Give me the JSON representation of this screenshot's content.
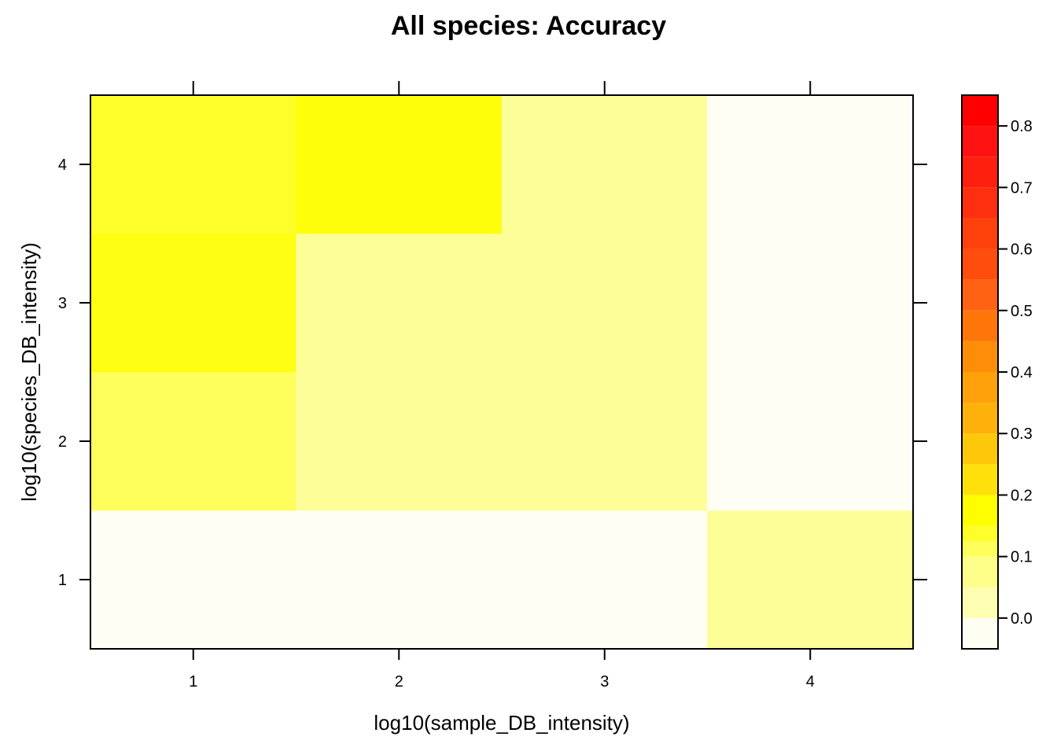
{
  "chart_data": {
    "type": "heatmap",
    "title": "All species: Accuracy",
    "xlabel": "log10(sample_DB_intensity)",
    "ylabel": "log10(species_DB_intensity)",
    "x": [
      1,
      2,
      3,
      4
    ],
    "y": [
      1,
      2,
      3,
      4
    ],
    "xlim": [
      0.5,
      4.5
    ],
    "ylim": [
      0.5,
      4.5
    ],
    "values": [
      [
        0.0,
        0.0,
        0.0,
        0.05
      ],
      [
        0.15,
        0.05,
        0.05,
        0.0
      ],
      [
        0.2,
        0.05,
        0.05,
        0.0
      ],
      [
        0.175,
        0.2,
        0.05,
        0.0
      ]
    ],
    "colorbar": {
      "range": [
        -0.05,
        0.85
      ],
      "breaks": [
        -0.05,
        0.0,
        0.05,
        0.1,
        0.125,
        0.15,
        0.2,
        0.25,
        0.3,
        0.35,
        0.4,
        0.45,
        0.5,
        0.55,
        0.6,
        0.65,
        0.7,
        0.75,
        0.8,
        0.85
      ],
      "colors": [
        "#fefef3",
        "#fefeb3",
        "#fefe8a",
        "#fefe5a",
        "#fefe2a",
        "#fefe00",
        "#fee10b",
        "#fec80a",
        "#feb10a",
        "#fea10a",
        "#fe8e0a",
        "#fe760a",
        "#fe6212",
        "#fe4d0d",
        "#fe400c",
        "#fe2f0e",
        "#fe1f0e",
        "#fe1212",
        "#fe0000"
      ],
      "ticks": [
        "0.0",
        "0.1",
        "0.2",
        "0.3",
        "0.4",
        "0.5",
        "0.6",
        "0.7",
        "0.8"
      ],
      "tick_values": [
        0.0,
        0.1,
        0.2,
        0.3,
        0.4,
        0.5,
        0.6,
        0.7,
        0.8
      ]
    },
    "xticks": [
      "1",
      "2",
      "3",
      "4"
    ],
    "yticks": [
      "1",
      "2",
      "3",
      "4"
    ],
    "cell_colors": [
      [
        "#fefef4",
        "#fefef4",
        "#fefef4",
        "#fefe99"
      ],
      [
        "#fefe5c",
        "#fefe99",
        "#fefe99",
        "#fefef4"
      ],
      [
        "#fefe12",
        "#fefe99",
        "#fefe99",
        "#fefef4"
      ],
      [
        "#fefe2a",
        "#fefe0a",
        "#fefe99",
        "#fefef4"
      ]
    ]
  }
}
